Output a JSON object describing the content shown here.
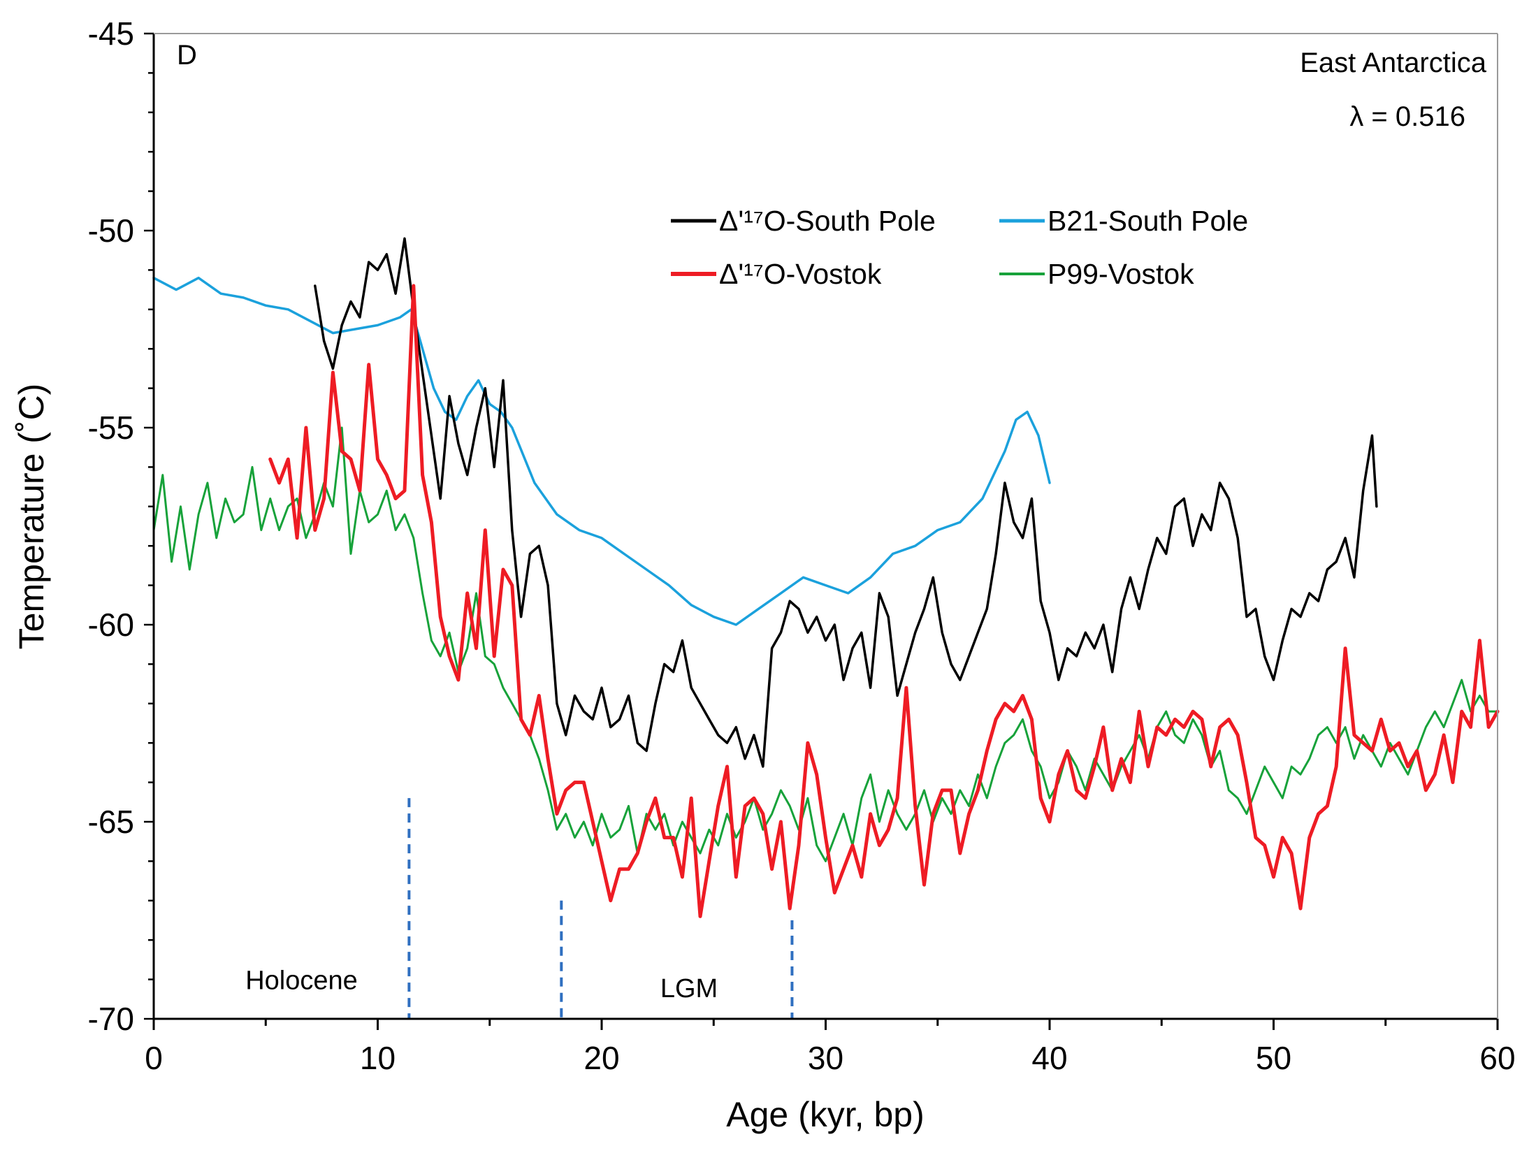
{
  "chart_data": {
    "type": "line",
    "panel_label": "D",
    "region_label": "East Antarctica",
    "lambda_label": "λ = 0.516",
    "xlabel": "Age (kyr, bp)",
    "ylabel": "Temperature (˚C)",
    "xlim": [
      0,
      60
    ],
    "ylim": [
      -70,
      -45
    ],
    "x_ticks": [
      0,
      10,
      20,
      30,
      40,
      50,
      60
    ],
    "y_ticks": [
      -70,
      -65,
      -60,
      -55,
      -50,
      -45
    ],
    "legend": [
      {
        "label": "Δ'¹⁷O-South Pole",
        "color": "#000000"
      },
      {
        "label": "B21-South Pole",
        "color": "#1ba1dc"
      },
      {
        "label": "Δ'¹⁷O-Vostok",
        "color": "#ee1c24"
      },
      {
        "label": "P99-Vostok",
        "color": "#17a23a"
      }
    ],
    "annotations": [
      {
        "text": "Holocene",
        "x": 6.6,
        "y": -69.0
      },
      {
        "text": "LGM",
        "x": 23.9,
        "y": -69.2
      }
    ],
    "boundaries": [
      {
        "x": 11.4,
        "y_top": -64.4,
        "y_bottom": -70
      },
      {
        "x": 18.2,
        "y_top": -67.0,
        "y_bottom": -70
      },
      {
        "x": 28.5,
        "y_top": -67.5,
        "y_bottom": -70
      }
    ],
    "series": [
      {
        "name": "Δ'¹⁷O-South Pole",
        "color": "#000000",
        "width": 3.5,
        "x": [
          7.2,
          7.6,
          8.0,
          8.4,
          8.8,
          9.2,
          9.6,
          10.0,
          10.4,
          10.8,
          11.2,
          11.6,
          12.0,
          12.4,
          12.8,
          13.2,
          13.6,
          14.0,
          14.4,
          14.8,
          15.2,
          15.6,
          16.0,
          16.4,
          16.8,
          17.2,
          17.6,
          18.0,
          18.4,
          18.8,
          19.2,
          19.6,
          20.0,
          20.4,
          20.8,
          21.2,
          21.6,
          22.0,
          22.4,
          22.8,
          23.2,
          23.6,
          24.0,
          24.4,
          24.8,
          25.2,
          25.6,
          26.0,
          26.4,
          26.8,
          27.2,
          27.6,
          28.0,
          28.4,
          28.8,
          29.2,
          29.6,
          30.0,
          30.4,
          30.8,
          31.2,
          31.6,
          32.0,
          32.4,
          32.8,
          33.2,
          33.6,
          34.0,
          34.4,
          34.8,
          35.2,
          35.6,
          36.0,
          36.4,
          36.8,
          37.2,
          37.6,
          38.0,
          38.4,
          38.8,
          39.2,
          39.6,
          40.0,
          40.4,
          40.8,
          41.2,
          41.6,
          42.0,
          42.4,
          42.8,
          43.2,
          43.6,
          44.0,
          44.4,
          44.8,
          45.2,
          45.6,
          46.0,
          46.4,
          46.8,
          47.2,
          47.6,
          48.0,
          48.4,
          48.8,
          49.2,
          49.6,
          50.0,
          50.4,
          50.8,
          51.2,
          51.6,
          52.0,
          52.4,
          52.8,
          53.2,
          53.6,
          54.0,
          54.4,
          54.6
        ],
        "y": [
          -51.4,
          -52.8,
          -53.5,
          -52.4,
          -51.8,
          -52.2,
          -50.8,
          -51.0,
          -50.6,
          -51.6,
          -50.2,
          -52.0,
          -53.6,
          -55.2,
          -56.8,
          -54.2,
          -55.4,
          -56.2,
          -55.0,
          -54.0,
          -56.0,
          -53.8,
          -57.6,
          -59.8,
          -58.2,
          -58.0,
          -59.0,
          -62.0,
          -62.8,
          -61.8,
          -62.2,
          -62.4,
          -61.6,
          -62.6,
          -62.4,
          -61.8,
          -63.0,
          -63.2,
          -62.0,
          -61.0,
          -61.2,
          -60.4,
          -61.6,
          -62.0,
          -62.4,
          -62.8,
          -63.0,
          -62.6,
          -63.4,
          -62.8,
          -63.6,
          -60.6,
          -60.2,
          -59.4,
          -59.6,
          -60.2,
          -59.8,
          -60.4,
          -60.0,
          -61.4,
          -60.6,
          -60.2,
          -61.6,
          -59.2,
          -59.8,
          -61.8,
          -61.0,
          -60.2,
          -59.6,
          -58.8,
          -60.2,
          -61.0,
          -61.4,
          -60.8,
          -60.2,
          -59.6,
          -58.2,
          -56.4,
          -57.4,
          -57.8,
          -56.8,
          -59.4,
          -60.2,
          -61.4,
          -60.6,
          -60.8,
          -60.2,
          -60.6,
          -60.0,
          -61.2,
          -59.6,
          -58.8,
          -59.6,
          -58.6,
          -57.8,
          -58.2,
          -57.0,
          -56.8,
          -58.0,
          -57.2,
          -57.6,
          -56.4,
          -56.8,
          -57.8,
          -59.8,
          -59.6,
          -60.8,
          -61.4,
          -60.4,
          -59.6,
          -59.8,
          -59.2,
          -59.4,
          -58.6,
          -58.4,
          -57.8,
          -58.8,
          -56.6,
          -55.2,
          -57.0
        ]
      },
      {
        "name": "B21-South Pole",
        "color": "#1ba1dc",
        "width": 3.5,
        "x": [
          0,
          1,
          2,
          3,
          4,
          5,
          6,
          7,
          8,
          9,
          10,
          11,
          11.5,
          12,
          12.5,
          13,
          13.5,
          14,
          14.5,
          15,
          15.5,
          16,
          17,
          18,
          19,
          20,
          21,
          22,
          23,
          24,
          25,
          26,
          27,
          28,
          29,
          30,
          31,
          32,
          33,
          34,
          35,
          36,
          37,
          38,
          38.5,
          39,
          39.5,
          40
        ],
        "y": [
          -51.2,
          -51.5,
          -51.2,
          -51.6,
          -51.7,
          -51.9,
          -52.0,
          -52.3,
          -52.6,
          -52.5,
          -52.4,
          -52.2,
          -52.0,
          -53.0,
          -54.0,
          -54.6,
          -54.8,
          -54.2,
          -53.8,
          -54.4,
          -54.6,
          -55.0,
          -56.4,
          -57.2,
          -57.6,
          -57.8,
          -58.2,
          -58.6,
          -59.0,
          -59.5,
          -59.8,
          -60.0,
          -59.6,
          -59.2,
          -58.8,
          -59.0,
          -59.2,
          -58.8,
          -58.2,
          -58.0,
          -57.6,
          -57.4,
          -56.8,
          -55.6,
          -54.8,
          -54.6,
          -55.2,
          -56.4
        ]
      },
      {
        "name": "Δ'¹⁷O-Vostok",
        "color": "#ee1c24",
        "width": 5,
        "x": [
          5.2,
          5.6,
          6.0,
          6.4,
          6.8,
          7.2,
          7.6,
          8.0,
          8.4,
          8.8,
          9.2,
          9.6,
          10.0,
          10.4,
          10.8,
          11.2,
          11.6,
          12.0,
          12.4,
          12.8,
          13.2,
          13.6,
          14.0,
          14.4,
          14.8,
          15.2,
          15.6,
          16.0,
          16.4,
          16.8,
          17.2,
          17.6,
          18.0,
          18.4,
          18.8,
          19.2,
          19.6,
          20.0,
          20.4,
          20.8,
          21.2,
          21.6,
          22.0,
          22.4,
          22.8,
          23.2,
          23.6,
          24.0,
          24.4,
          24.8,
          25.2,
          25.6,
          26.0,
          26.4,
          26.8,
          27.2,
          27.6,
          28.0,
          28.4,
          28.8,
          29.2,
          29.6,
          30.0,
          30.4,
          30.8,
          31.2,
          31.6,
          32.0,
          32.4,
          32.8,
          33.2,
          33.6,
          34.0,
          34.4,
          34.8,
          35.2,
          35.6,
          36.0,
          36.4,
          36.8,
          37.2,
          37.6,
          38.0,
          38.4,
          38.8,
          39.2,
          39.6,
          40.0,
          40.4,
          40.8,
          41.2,
          41.6,
          42.0,
          42.4,
          42.8,
          43.2,
          43.6,
          44.0,
          44.4,
          44.8,
          45.2,
          45.6,
          46.0,
          46.4,
          46.8,
          47.2,
          47.6,
          48.0,
          48.4,
          48.8,
          49.2,
          49.6,
          50.0,
          50.4,
          50.8,
          51.2,
          51.6,
          52.0,
          52.4,
          52.8,
          53.2,
          53.6,
          54.0,
          54.4,
          54.8,
          55.2,
          55.6,
          56.0,
          56.4,
          56.8,
          57.2,
          57.6,
          58.0,
          58.4,
          58.8,
          59.2,
          59.6,
          60.0
        ],
        "y": [
          -55.8,
          -56.4,
          -55.8,
          -57.8,
          -55.0,
          -57.6,
          -56.8,
          -53.6,
          -55.6,
          -55.8,
          -56.6,
          -53.4,
          -55.8,
          -56.2,
          -56.8,
          -56.6,
          -51.4,
          -56.2,
          -57.4,
          -59.8,
          -60.8,
          -61.4,
          -59.2,
          -60.6,
          -57.6,
          -60.8,
          -58.6,
          -59.0,
          -62.4,
          -62.8,
          -61.8,
          -63.4,
          -64.8,
          -64.2,
          -64.0,
          -64.0,
          -65.0,
          -66.0,
          -67.0,
          -66.2,
          -66.2,
          -65.8,
          -65.0,
          -64.4,
          -65.4,
          -65.4,
          -66.4,
          -64.4,
          -67.4,
          -66.0,
          -64.6,
          -63.6,
          -66.4,
          -64.6,
          -64.4,
          -64.8,
          -66.2,
          -65.0,
          -67.2,
          -65.6,
          -63.0,
          -63.8,
          -65.4,
          -66.8,
          -66.2,
          -65.6,
          -66.4,
          -64.8,
          -65.6,
          -65.2,
          -64.4,
          -61.6,
          -64.6,
          -66.6,
          -64.8,
          -64.2,
          -64.2,
          -65.8,
          -64.8,
          -64.2,
          -63.2,
          -62.4,
          -62.0,
          -62.2,
          -61.8,
          -62.4,
          -64.4,
          -65.0,
          -63.8,
          -63.2,
          -64.2,
          -64.4,
          -63.6,
          -62.6,
          -64.2,
          -63.4,
          -64.0,
          -62.2,
          -63.6,
          -62.6,
          -62.8,
          -62.4,
          -62.6,
          -62.2,
          -62.4,
          -63.6,
          -62.6,
          -62.4,
          -62.8,
          -64.0,
          -65.4,
          -65.6,
          -66.4,
          -65.4,
          -65.8,
          -67.2,
          -65.4,
          -64.8,
          -64.6,
          -63.6,
          -60.6,
          -62.8,
          -63.0,
          -63.2,
          -62.4,
          -63.2,
          -63.0,
          -63.6,
          -63.2,
          -64.2,
          -63.8,
          -62.8,
          -64.0,
          -62.2,
          -62.6,
          -60.4,
          -62.6,
          -62.2
        ]
      },
      {
        "name": "P99-Vostok",
        "color": "#17a23a",
        "width": 3,
        "x": [
          0.0,
          0.4,
          0.8,
          1.2,
          1.6,
          2.0,
          2.4,
          2.8,
          3.2,
          3.6,
          4.0,
          4.4,
          4.8,
          5.2,
          5.6,
          6.0,
          6.4,
          6.8,
          7.2,
          7.6,
          8.0,
          8.4,
          8.8,
          9.2,
          9.6,
          10.0,
          10.4,
          10.8,
          11.2,
          11.6,
          12.0,
          12.4,
          12.8,
          13.2,
          13.6,
          14.0,
          14.4,
          14.8,
          15.2,
          15.6,
          16.0,
          16.4,
          16.8,
          17.2,
          17.6,
          18.0,
          18.4,
          18.8,
          19.2,
          19.6,
          20.0,
          20.4,
          20.8,
          21.2,
          21.6,
          22.0,
          22.4,
          22.8,
          23.2,
          23.6,
          24.0,
          24.4,
          24.8,
          25.2,
          25.6,
          26.0,
          26.4,
          26.8,
          27.2,
          27.6,
          28.0,
          28.4,
          28.8,
          29.2,
          29.6,
          30.0,
          30.4,
          30.8,
          31.2,
          31.6,
          32.0,
          32.4,
          32.8,
          33.2,
          33.6,
          34.0,
          34.4,
          34.8,
          35.2,
          35.6,
          36.0,
          36.4,
          36.8,
          37.2,
          37.6,
          38.0,
          38.4,
          38.8,
          39.2,
          39.6,
          40.0,
          40.4,
          40.8,
          41.2,
          41.6,
          42.0,
          42.4,
          42.8,
          43.2,
          43.6,
          44.0,
          44.4,
          44.8,
          45.2,
          45.6,
          46.0,
          46.4,
          46.8,
          47.2,
          47.6,
          48.0,
          48.4,
          48.8,
          49.2,
          49.6,
          50.0,
          50.4,
          50.8,
          51.2,
          51.6,
          52.0,
          52.4,
          52.8,
          53.2,
          53.6,
          54.0,
          54.4,
          54.8,
          55.2,
          55.6,
          56.0,
          56.4,
          56.8,
          57.2,
          57.6,
          58.0,
          58.4,
          58.8,
          59.2,
          59.6,
          60.0
        ],
        "y": [
          -57.6,
          -56.2,
          -58.4,
          -57.0,
          -58.6,
          -57.2,
          -56.4,
          -57.8,
          -56.8,
          -57.4,
          -57.2,
          -56.0,
          -57.6,
          -56.8,
          -57.6,
          -57.0,
          -56.8,
          -57.8,
          -57.2,
          -56.4,
          -57.0,
          -55.0,
          -58.2,
          -56.6,
          -57.4,
          -57.2,
          -56.6,
          -57.6,
          -57.2,
          -57.8,
          -59.2,
          -60.4,
          -60.8,
          -60.2,
          -61.2,
          -60.6,
          -59.2,
          -60.8,
          -61.0,
          -61.6,
          -62.0,
          -62.4,
          -62.8,
          -63.4,
          -64.2,
          -65.2,
          -64.8,
          -65.4,
          -65.0,
          -65.6,
          -64.8,
          -65.4,
          -65.2,
          -64.6,
          -65.8,
          -64.8,
          -65.2,
          -64.8,
          -65.6,
          -65.0,
          -65.4,
          -65.8,
          -65.2,
          -65.6,
          -64.8,
          -65.4,
          -65.0,
          -64.4,
          -65.2,
          -64.8,
          -64.2,
          -64.6,
          -65.2,
          -64.4,
          -65.6,
          -66.0,
          -65.4,
          -64.8,
          -65.6,
          -64.4,
          -63.8,
          -65.0,
          -64.2,
          -64.8,
          -65.2,
          -64.8,
          -64.2,
          -65.0,
          -64.4,
          -64.8,
          -64.2,
          -64.6,
          -63.8,
          -64.4,
          -63.6,
          -63.0,
          -62.8,
          -62.4,
          -63.2,
          -63.6,
          -64.4,
          -64.0,
          -63.2,
          -63.6,
          -64.2,
          -63.4,
          -63.8,
          -64.2,
          -63.6,
          -63.2,
          -62.8,
          -63.4,
          -62.6,
          -62.2,
          -62.8,
          -63.0,
          -62.4,
          -62.8,
          -63.6,
          -63.2,
          -64.2,
          -64.4,
          -64.8,
          -64.2,
          -63.6,
          -64.0,
          -64.4,
          -63.6,
          -63.8,
          -63.4,
          -62.8,
          -62.6,
          -63.0,
          -62.6,
          -63.4,
          -62.8,
          -63.2,
          -63.6,
          -63.0,
          -63.4,
          -63.8,
          -63.2,
          -62.6,
          -62.2,
          -62.6,
          -62.0,
          -61.4,
          -62.2,
          -61.8,
          -62.2,
          -62.2
        ]
      }
    ]
  }
}
